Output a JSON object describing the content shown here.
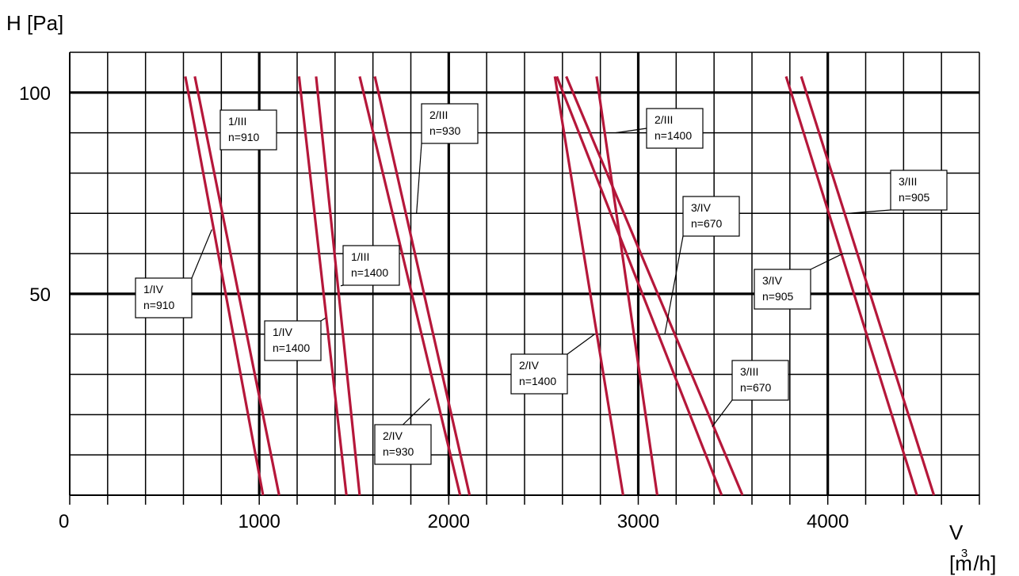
{
  "chart_data": {
    "type": "line",
    "title": "",
    "ylabel": "H [Pa]",
    "xlabel": {
      "letter": "V",
      "unit_prefix": "[m",
      "unit_sup": "3",
      "unit_suffix": " /h]"
    },
    "xlim": [
      0,
      4800
    ],
    "ylim": [
      0,
      110
    ],
    "x_ticks": [
      0,
      1000,
      2000,
      3000,
      4000
    ],
    "x_tick_labels": [
      "0",
      "1000",
      "2000",
      "3000",
      "4000"
    ],
    "y_ticks": [
      50,
      100
    ],
    "y_tick_labels": [
      "50",
      "100"
    ],
    "grid": true,
    "line_color": "#b5173a",
    "series": [
      {
        "name": "1/IV n=910",
        "x": [
          610,
          1020
        ],
        "y": [
          104,
          0
        ]
      },
      {
        "name": "1/III n=910",
        "x": [
          660,
          1105
        ],
        "y": [
          104,
          0
        ]
      },
      {
        "name": "1/IV n=1400",
        "x": [
          1210,
          1460
        ],
        "y": [
          104,
          0
        ]
      },
      {
        "name": "1/III n=1400",
        "x": [
          1300,
          1530
        ],
        "y": [
          104,
          0
        ]
      },
      {
        "name": "2/IV n=930",
        "x": [
          1530,
          2060
        ],
        "y": [
          104,
          0
        ]
      },
      {
        "name": "2/III n=930",
        "x": [
          1610,
          2110
        ],
        "y": [
          104,
          0
        ]
      },
      {
        "name": "2/IV n=1400",
        "x": [
          2560,
          2920
        ],
        "y": [
          104,
          0
        ]
      },
      {
        "name": "2/III n=1400",
        "x": [
          2780,
          3100
        ],
        "y": [
          104,
          0
        ]
      },
      {
        "name": "3/IV n=670",
        "x": [
          2570,
          3440
        ],
        "y": [
          104,
          0
        ]
      },
      {
        "name": "3/III n=670",
        "x": [
          2620,
          3550
        ],
        "y": [
          104,
          0
        ]
      },
      {
        "name": "3/IV n=905",
        "x": [
          3780,
          4470
        ],
        "y": [
          104,
          0
        ]
      },
      {
        "name": "3/III n=905",
        "x": [
          3860,
          4560
        ],
        "y": [
          104,
          0
        ]
      }
    ],
    "annotations": [
      {
        "line1": "1/III",
        "line2": "n=910",
        "pointer": [
          800,
          88
        ]
      },
      {
        "line1": "1/IV",
        "line2": "n=910",
        "pointer": [
          750,
          66
        ]
      },
      {
        "line1": "1/III",
        "line2": "n=1400",
        "pointer": [
          1430,
          52
        ]
      },
      {
        "line1": "1/IV",
        "line2": "n=1400",
        "pointer": [
          1350,
          44
        ]
      },
      {
        "line1": "2/III",
        "line2": "n=930",
        "pointer": [
          1830,
          70
        ]
      },
      {
        "line1": "2/IV",
        "line2": "n=930",
        "pointer": [
          1900,
          24
        ]
      },
      {
        "line1": "2/III",
        "line2": "n=1400",
        "pointer": [
          2880,
          90
        ]
      },
      {
        "line1": "2/IV",
        "line2": "n=1400",
        "pointer": [
          2770,
          40
        ]
      },
      {
        "line1": "3/IV",
        "line2": "n=670",
        "pointer": [
          3140,
          40
        ]
      },
      {
        "line1": "3/III",
        "line2": "n=670",
        "pointer": [
          3390,
          17
        ]
      },
      {
        "line1": "3/III",
        "line2": "n=905",
        "pointer": [
          4110,
          70
        ]
      },
      {
        "line1": "3/IV",
        "line2": "n=905",
        "pointer": [
          4080,
          60
        ]
      }
    ]
  }
}
